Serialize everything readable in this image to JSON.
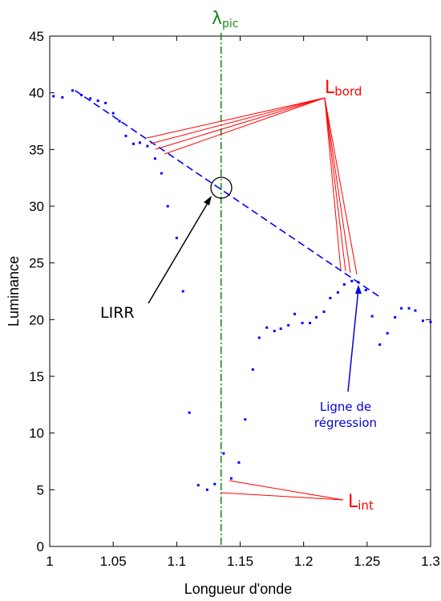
{
  "chart_data": {
    "type": "scatter",
    "xlabel": "Longueur d'onde",
    "ylabel": "Luminance",
    "xlim": [
      1,
      1.3
    ],
    "ylim": [
      0,
      45
    ],
    "x_ticks": [
      "1",
      "1.05",
      "1.1",
      "1.15",
      "1.2",
      "1.25",
      "1.3"
    ],
    "y_ticks": [
      "0",
      "5",
      "10",
      "15",
      "20",
      "25",
      "30",
      "35",
      "40",
      "45"
    ],
    "grid": false,
    "colors": {
      "points": "#0000ff",
      "regression": "#0000ff",
      "peak_line": "#1a8a1a",
      "annotation_red": "#ff0000",
      "annotation_blue": "#0000dd",
      "annotation_black": "#000000"
    },
    "series": [
      {
        "kind": "points",
        "x": [
          1.003,
          1.01,
          1.018,
          1.025,
          1.032,
          1.038,
          1.044,
          1.05,
          1.055,
          1.06,
          1.066,
          1.071,
          1.077,
          1.083,
          1.088,
          1.093,
          1.1,
          1.105,
          1.11,
          1.117,
          1.124,
          1.13,
          1.137,
          1.143,
          1.149,
          1.154,
          1.16,
          1.165,
          1.171,
          1.177,
          1.182,
          1.188,
          1.193,
          1.199,
          1.205,
          1.21,
          1.216,
          1.221,
          1.227,
          1.232,
          1.238,
          1.243,
          1.249,
          1.254,
          1.26,
          1.266,
          1.272,
          1.277,
          1.283,
          1.288,
          1.294,
          1.3
        ],
        "y": [
          39.7,
          39.6,
          40.2,
          39.8,
          39.5,
          39.3,
          39.1,
          38.2,
          37.5,
          36.2,
          35.5,
          35.6,
          35.3,
          34.2,
          32.9,
          30.0,
          27.2,
          22.5,
          11.8,
          5.4,
          5.0,
          5.5,
          8.2,
          6.0,
          7.4,
          11.2,
          15.6,
          18.4,
          19.3,
          19.0,
          19.2,
          19.5,
          20.5,
          19.7,
          19.7,
          20.2,
          20.7,
          21.9,
          22.4,
          23.1,
          23.4,
          23.3,
          22.6,
          20.3,
          17.8,
          18.8,
          20.2,
          21.0,
          21.0,
          20.8,
          19.9,
          19.8
        ]
      },
      {
        "kind": "regression",
        "x": [
          1.02,
          1.26
        ],
        "y": [
          40.2,
          22.0
        ]
      }
    ],
    "peak_x": 1.135,
    "annotations": {
      "lambda_main": "λ",
      "lambda_sub": "pic",
      "lbord_main": "L",
      "lbord_sub": "bord",
      "lint_main": "L",
      "lint_sub": "int",
      "lirr": "LIRR",
      "regression_line1": "Ligne de",
      "regression_line2": "régression"
    }
  }
}
